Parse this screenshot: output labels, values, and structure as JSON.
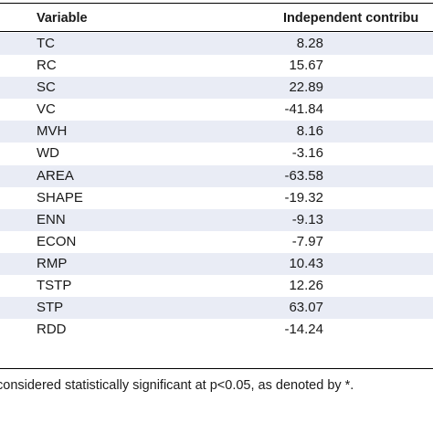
{
  "table": {
    "header": {
      "variable": "Variable",
      "contribution": "Independent contribu"
    },
    "rows": [
      {
        "variable": "TC",
        "value": "8.28"
      },
      {
        "variable": "RC",
        "value": "15.67"
      },
      {
        "variable": "SC",
        "value": "22.89"
      },
      {
        "variable": "VC",
        "value": "-41.84"
      },
      {
        "variable": "MVH",
        "value": "8.16"
      },
      {
        "variable": "WD",
        "value": "-3.16"
      },
      {
        "variable": "AREA",
        "value": "-63.58"
      },
      {
        "variable": "SHAPE",
        "value": "-19.32"
      },
      {
        "variable": "ENN",
        "value": "-9.13"
      },
      {
        "variable": "ECON",
        "value": "-7.97"
      },
      {
        "variable": "RMP",
        "value": "10.43"
      },
      {
        "variable": "TSTP",
        "value": "12.26"
      },
      {
        "variable": "STP",
        "value": "63.07"
      },
      {
        "variable": "RDD",
        "value": "-14.24"
      }
    ]
  },
  "footnote": "considered statistically significant at p<0.05, as denoted by *.",
  "colors": {
    "shaded_row": "#e9ecf5",
    "rule": "#000000",
    "text": "#1a1a1a"
  }
}
